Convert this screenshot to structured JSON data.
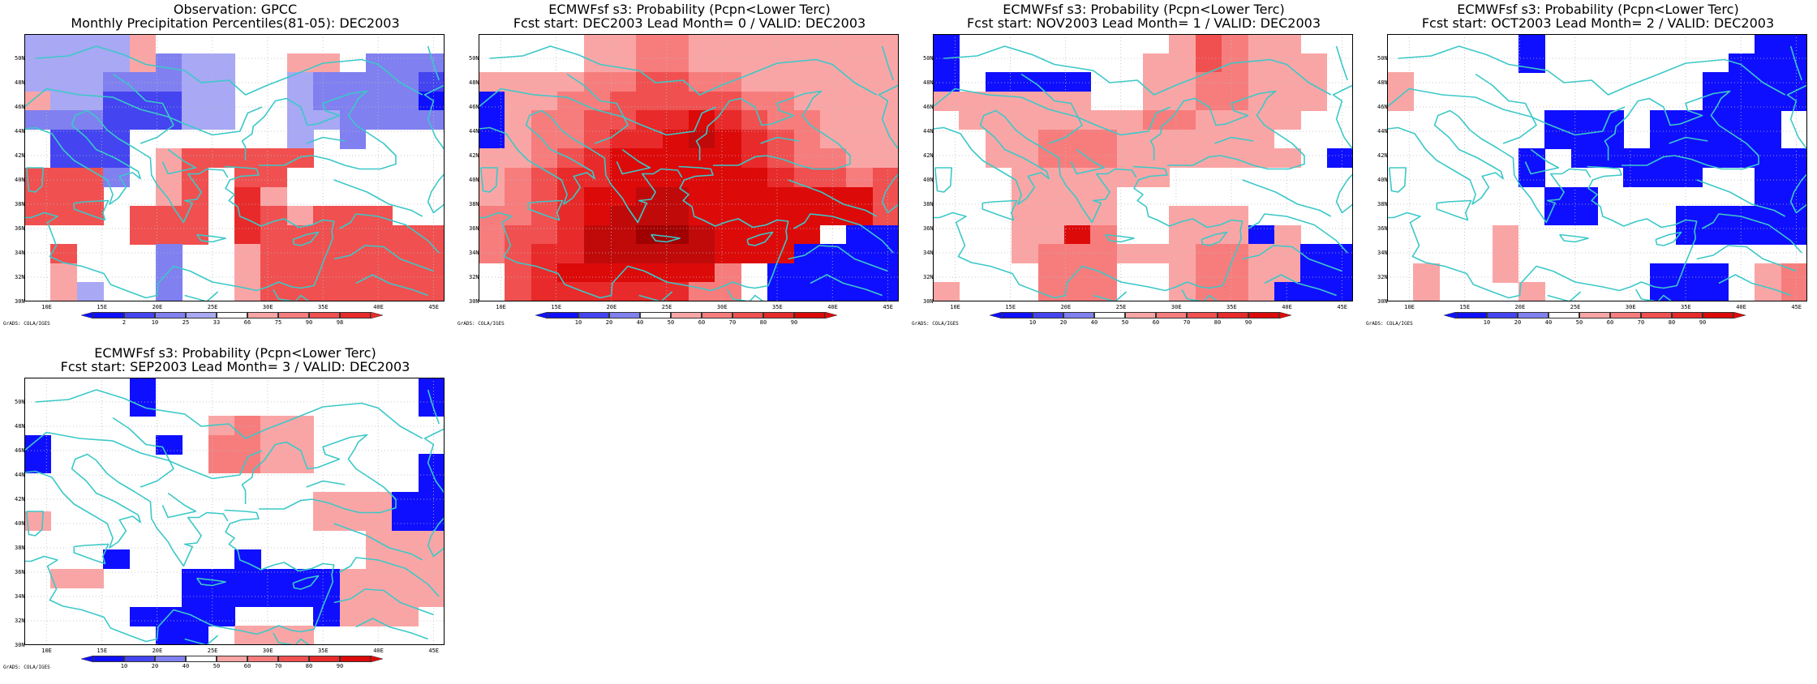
{
  "page": {
    "background": "#ffffff"
  },
  "coast_color": "#3cc8c8",
  "grid_color": "#bbbbbb",
  "credit": "GrADS: COLA/IGES",
  "longitudes": [
    "10E",
    "15E",
    "20E",
    "25E",
    "30E",
    "35E",
    "40E",
    "45E"
  ],
  "latitudes": [
    "50N",
    "48N",
    "46N",
    "44N",
    "42N",
    "40N",
    "38N",
    "36N",
    "34N",
    "32N",
    "30N"
  ],
  "extent": {
    "lon": [
      8,
      46
    ],
    "lat": [
      30,
      52
    ]
  },
  "cell_size_deg": 2.5,
  "palette": {
    "b3": "#0f0fff",
    "b2": "#4444f0",
    "b1": "#8080f0",
    "b0": "#a8a8f5",
    "r0": "#faa5a5",
    "r1": "#f77d7d",
    "r2": "#f05050",
    "r3": "#e82a2a",
    "r4": "#dd0a0a",
    "r5": "#c00a0a",
    "r6": "#a00000",
    "w": "#ffffff"
  },
  "colorbars": {
    "obs": {
      "labels": [
        "2",
        "10",
        "25",
        "33",
        "66",
        "75",
        "90",
        "98"
      ],
      "colors": [
        "#0f0fff",
        "#4444f0",
        "#8080f0",
        "#a8a8f5",
        "#ffffff",
        "#faa5a5",
        "#f77d7d",
        "#f05050",
        "#e82a2a"
      ]
    },
    "prob": {
      "labels": [
        "10",
        "20",
        "40",
        "50",
        "60",
        "70",
        "80",
        "90"
      ],
      "colors": [
        "#0f0fff",
        "#4444f0",
        "#8080f0",
        "#ffffff",
        "#faa5a5",
        "#f77d7d",
        "#f05050",
        "#e82a2a",
        "#dd0a0a"
      ]
    }
  },
  "panels": [
    {
      "id": "obs",
      "colorbar": "obs",
      "title_lines": [
        "Observation: GPCC",
        "Monthly Precipitation Percentiles(81-05): DEC2003"
      ],
      "grid": [
        "b0 b0 b0 b0 r0 w  w  w  w  w  w  w  w  w  w  w ",
        "b0 b0 b0 b0 r0 b1 b0 b0 w  w  r0 r0 w  b1 b1 b1",
        "b0 b0 b0 b1 b1 b1 b0 b0 w  w  b0 b1 b1 b1 b1 b2",
        "r0 b0 b0 b2 b2 b2 b0 b0 w  w  b0 b1 b1 b1 b1 b3",
        "b1 b1 b1 b2 b2 b2 b0 b0 w  w  b0 b0 b1 b1 b1 b1",
        "w  b2 b2 b2 w  w  w  w  w  w  b0 w  b1 w  w  w ",
        "w  b2 b2 b2 w  r0 r2 r2 r2 r2 r2 w  w  w  w  w ",
        "r2 r2 r2 b1 w  r0 r2 w  r2 r2 w  w  w  w  w  w ",
        "r2 r2 r2 w  w  r0 r2 w  r3 r0 w  w  w  w  w  w ",
        "r2 r2 r2 w  r2 r2 r2 w  r3 r2 r0 r2 r2 r2 w  w ",
        "w  w  w  w  r2 r2 r2 w  r3 r2 r2 r2 r2 r2 r2 r2",
        "w  r2 w  w  w  b1 w  w  r0 r2 r2 r2 r2 r2 r2 r2",
        "w  r0 w  w  w  b1 w  w  r0 r2 r2 r2 r2 r2 r2 r2",
        "w  r0 b0 w  w  b1 w  w  r0 r2 r2 r2 r2 r2 r2 r2"
      ]
    },
    {
      "id": "lead0",
      "colorbar": "prob",
      "title_lines": [
        "ECMWFsf s3: Probability (Pcpn<Lower Terc)",
        "Fcst start: DEC2003   Lead Month= 0 / VALID: DEC2003"
      ],
      "grid": [
        "w  w  w  w  r0 r0 r1 r1 r0 r0 r0 r0 r0 r0 r0 r0",
        "w  w  w  w  r0 r0 r1 r1 r0 r0 r0 r0 r0 r0 r0 r0",
        "r0 r0 r0 r0 r1 r1 r2 r2 r1 r1 r0 r0 r0 r0 r0 r0",
        "b3 r0 r0 r1 r1 r2 r2 r2 r2 r2 r1 r1 r0 r0 r0 r0",
        "b3 r0 r1 r1 r2 r2 r3 r3 r4 r3 r2 r1 r1 r0 r0 r0",
        "b3 r0 r1 r1 r2 r3 r3 r4 r5 r4 r3 r2 r1 r0 r0 r0",
        "r0 r0 r1 r2 r3 r4 r4 r4 r4 r4 r3 r2 r1 r1 r0 r0",
        "r0 r1 r2 r3 r3 r4 r4 r4 r4 r4 r4 r3 r2 r2 r1 r2",
        "r0 r1 r2 r3 r4 r4 r5 r5 r4 r4 r4 r4 r4 r4 r4 r2",
        "r1 r1 r2 r3 r4 r5 r5 r5 r4 r4 r4 r4 r4 r4 r4 r2",
        "r1 r2 r2 r3 r5 r5 r6 r6 r5 r4 r4 r4 r4 w  b3 b3",
        "r1 r2 r3 r3 r5 r5 r5 r5 r5 r4 r4 r4 b3 b3 b3 b3",
        "w  r2 r3 r4 r4 r4 r4 r4 r4 r1 w  b3 b3 b3 b3 b3",
        "w  r2 r3 r3 r3 r3 r3 r3 r1 r1 w  b3 b3 b3 b3 b3"
      ]
    },
    {
      "id": "lead1",
      "colorbar": "prob",
      "title_lines": [
        "ECMWFsf s3: Probability (Pcpn<Lower Terc)",
        "Fcst start: NOV2003   Lead Month= 1 / VALID: DEC2003"
      ],
      "grid": [
        "b3 w  w  w  w  w  w  w  w  r0 r2 r1 r0 r0 w  w ",
        "b3 w  w  w  w  w  w  w  r0 r0 r2 r1 r0 r0 r0 w ",
        "b3 w  b3 b3 b3 b3 w  w  r0 r0 r1 r1 r0 r0 r0 w ",
        "r0 r0 r0 r0 r0 r0 w  w  r0 r0 r1 r1 r0 r0 r0 w ",
        "w  r0 r0 r0 r0 r0 r0 r0 r1 r1 r0 r0 r0 r0 w  w ",
        "w  w  r0 r0 r1 r1 r1 r0 r0 r0 r0 r0 r0 w  w  w ",
        "w  w  r0 r0 r1 r1 r1 r0 r0 r0 r0 r0 r0 r0 w  b3",
        "w  w  w  r0 r0 r0 r0 r0 r0 w  w  w  w  w  w  w ",
        "w  w  w  r0 r0 r0 r0 w  w  w  w  w  w  w  w  w ",
        "w  w  w  r0 r0 r0 r0 w  w  r0 r0 r0 w  w  w  w ",
        "w  w  w  r0 r0 r4 r1 w  w  r0 r0 r0 b3 r0 w  w ",
        "w  w  w  r0 r1 r1 r1 r0 r0 r0 r1 r1 r0 r0 b3 b3",
        "w  w  w  w  r1 r1 r1 w  w  r0 r1 r1 r0 r0 b3 b3",
        "r0 w  w  w  r1 r1 r1 w  w  r0 r1 r1 r0 b3 b3 b3"
      ]
    },
    {
      "id": "lead2",
      "colorbar": "prob",
      "title_lines": [
        "ECMWFsf s3: Probability (Pcpn<Lower Terc)",
        "Fcst start: OCT2003   Lead Month= 2 / VALID: DEC2003"
      ],
      "grid": [
        "w  w  w  w  w  b3 w  w  w  w  w  w  w  w  b3 b3",
        "w  w  w  w  w  b3 w  w  w  w  w  w  w  b3 b3 b3",
        "r0 w  w  w  w  w  w  w  w  w  w  w  b3 b3 b3 b3",
        "r0 w  w  w  w  w  w  w  w  w  w  w  b3 b3 b3 b3",
        "w  w  w  w  w  w  b3 b3 b3 w  b3 b3 b3 b3 b3 w ",
        "w  w  w  w  w  w  b3 b3 b3 w  b3 b3 b3 b3 b3 w ",
        "w  w  w  w  w  b3 w  b3 b3 b3 b3 b3 b3 b3 b3 b3",
        "w  w  w  w  w  b3 w  w  w  b3 b3 b3 w  w  b3 b3",
        "w  w  w  w  w  w  b3 b3 w  w  w  w  w  w  b3 b3",
        "w  w  w  w  w  w  b3 b3 w  w  w  b3 b3 b3 b3 b3",
        "w  w  w  w  r0 w  w  w  w  w  w  b3 b3 b3 b3 b3",
        "w  w  w  w  r0 w  w  w  w  w  w  w  w  w  w  w ",
        "w  r0 w  w  r0 w  w  w  w  w  b3 b3 b3 w  r0 r1",
        "w  r0 w  w  w  r0 w  w  w  w  b3 b3 b3 w  r0 r1"
      ]
    },
    {
      "id": "lead3",
      "colorbar": "prob",
      "title_lines": [
        "ECMWFsf s3: Probability (Pcpn<Lower Terc)",
        "Fcst start: SEP2003   Lead Month= 3 / VALID: DEC2003"
      ],
      "grid": [
        "w  w  w  w  b3 w  w  w  w  w  w  w  w  w  w  b3",
        "w  w  w  w  b3 w  w  w  w  w  w  w  w  w  w  b3",
        "w  w  w  w  w  w  w  r0 r1 r0 r0 w  w  w  w  w ",
        "b3 w  w  w  w  b3 w  r1 r1 r0 r0 w  w  w  w  w ",
        "b3 w  w  w  w  w  w  r1 r1 r0 r0 w  w  w  w  b3",
        "w  w  w  w  w  w  w  w  w  w  w  w  w  w  w  b3",
        "w  w  w  w  w  w  w  w  w  w  w  r0 r0 r0 b3 b3",
        "r0 w  w  w  w  w  w  w  w  w  w  r0 r0 r0 b3 b3",
        "w  w  w  w  w  w  w  w  w  w  w  w  w  r0 r0 r0",
        "w  w  w  b3 w  w  w  w  b3 w  w  w  w  r0 r0 r0",
        "w  r0 r0 w  w  w  b3 b3 b3 b3 b3 b3 r0 r0 r0 r0",
        "w  w  w  w  w  w  b3 b3 b3 b3 b3 b3 r0 r0 r0 r0",
        "w  w  w  w  b3 b3 b3 b3 w  w  w  b3 r0 r0 r0 w ",
        "w  w  w  w  w  b3 b3 w  r0 r0 r0 w  w  w  w  w "
      ]
    }
  ]
}
